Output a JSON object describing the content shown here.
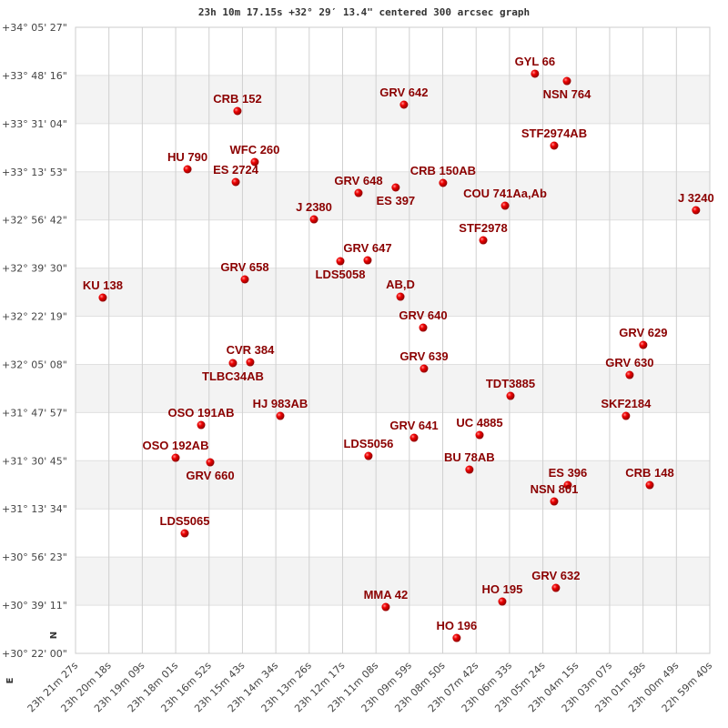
{
  "chart_data": {
    "type": "scatter",
    "title": "23h 10m 17.15s +32° 29′ 13.4\" centered 300 arcsec graph",
    "x_axis": {
      "unit": "hours (RA)",
      "reversed": true,
      "range": [
        23.3575,
        22.9944
      ],
      "tick_labels": [
        "23h 21m 27s",
        "23h 20m 18s",
        "23h 19m 09s",
        "23h 18m 01s",
        "23h 16m 52s",
        "23h 15m 43s",
        "23h 14m 34s",
        "23h 13m 26s",
        "23h 12m 17s",
        "23h 11m 08s",
        "23h 09m 59s",
        "23h 08m 50s",
        "23h 07m 42s",
        "23h 06m 33s",
        "23h 05m 24s",
        "23h 04m 15s",
        "23h 03m 07s",
        "23h 01m 58s",
        "23h 00m 49s",
        "22h 59m 40s"
      ]
    },
    "y_axis": {
      "unit": "degrees (Dec)",
      "range": [
        30.3667,
        34.0908
      ],
      "tick_labels": [
        "+34° 05' 27\"",
        "+33° 48' 16\"",
        "+33° 31' 04\"",
        "+33° 13' 53\"",
        "+32° 56' 42\"",
        "+32° 39' 30\"",
        "+32° 22' 19\"",
        "+32° 05' 08\"",
        "+31° 47' 57\"",
        "+31° 30' 45\"",
        "+31° 13' 34\"",
        "+30° 56' 23\"",
        "+30° 39' 11\"",
        "+30° 22' 00\""
      ]
    },
    "grid": true,
    "alternating_bands": true,
    "compass": {
      "north": "N",
      "east": "E"
    },
    "colors": {
      "point": "#e00000",
      "label": "#8b0000",
      "grid": "#d0d0d0",
      "band": "#f3f3f3"
    },
    "points": [
      {
        "name": "GYL  66",
        "ra": 23.0945,
        "dec": 33.8148
      },
      {
        "name": "NSN 764",
        "ra": 23.0762,
        "dec": 33.7714
      },
      {
        "name": "GRV 642",
        "ra": 23.1695,
        "dec": 33.6307
      },
      {
        "name": "CRB 152",
        "ra": 23.2648,
        "dec": 33.5928
      },
      {
        "name": "STF2974AB",
        "ra": 23.0835,
        "dec": 33.3871
      },
      {
        "name": "WFC 260",
        "ra": 23.2549,
        "dec": 33.2897
      },
      {
        "name": "HU  790",
        "ra": 23.2934,
        "dec": 33.2464
      },
      {
        "name": "ES 2724",
        "ra": 23.2658,
        "dec": 33.1706
      },
      {
        "name": "CRB 150AB",
        "ra": 23.1471,
        "dec": 33.1652
      },
      {
        "name": "ES  397",
        "ra": 23.1742,
        "dec": 33.1381
      },
      {
        "name": "GRV 648",
        "ra": 23.1955,
        "dec": 33.1056
      },
      {
        "name": "COU 741Aa,Ab",
        "ra": 23.1116,
        "dec": 33.0298
      },
      {
        "name": "J  3240",
        "ra": 23.0023,
        "dec": 33.0028
      },
      {
        "name": "J  2380",
        "ra": 23.221,
        "dec": 32.9486
      },
      {
        "name": "STF2978",
        "ra": 23.1241,
        "dec": 32.8241
      },
      {
        "name": "GRV 647",
        "ra": 23.1903,
        "dec": 32.705
      },
      {
        "name": "LDS5058",
        "ra": 23.2059,
        "dec": 32.6996
      },
      {
        "name": "GRV 658",
        "ra": 23.2606,
        "dec": 32.5914
      },
      {
        "name": "KU  138",
        "ra": 23.3419,
        "dec": 32.4831
      },
      {
        "name": "AB,D",
        "ra": 23.1715,
        "dec": 32.4885
      },
      {
        "name": "GRV 640",
        "ra": 23.1585,
        "dec": 32.3045
      },
      {
        "name": "GRV 629",
        "ra": 23.0325,
        "dec": 32.2016
      },
      {
        "name": "CVR 384",
        "ra": 23.2575,
        "dec": 32.0988
      },
      {
        "name": "TLBC34AB",
        "ra": 23.2674,
        "dec": 32.0934
      },
      {
        "name": "GRV 639",
        "ra": 23.158,
        "dec": 32.0609
      },
      {
        "name": "GRV 630",
        "ra": 23.0403,
        "dec": 32.023
      },
      {
        "name": "TDT3885",
        "ra": 23.1085,
        "dec": 31.8985
      },
      {
        "name": "SKF2184",
        "ra": 23.0424,
        "dec": 31.7794
      },
      {
        "name": "HJ  983AB",
        "ra": 23.2403,
        "dec": 31.7794
      },
      {
        "name": "OSO 191AB",
        "ra": 23.2856,
        "dec": 31.7253
      },
      {
        "name": "UC 4885",
        "ra": 23.1262,
        "dec": 31.6657
      },
      {
        "name": "GRV 641",
        "ra": 23.1637,
        "dec": 31.6495
      },
      {
        "name": "LDS5056",
        "ra": 23.1898,
        "dec": 31.5412
      },
      {
        "name": "OSO 192AB",
        "ra": 23.3002,
        "dec": 31.5304
      },
      {
        "name": "GRV 660",
        "ra": 23.2804,
        "dec": 31.5033
      },
      {
        "name": "BU   78AB",
        "ra": 23.132,
        "dec": 31.46
      },
      {
        "name": "ES  396",
        "ra": 23.0757,
        "dec": 31.368
      },
      {
        "name": "CRB 148",
        "ra": 23.0288,
        "dec": 31.368
      },
      {
        "name": "NSN 801",
        "ra": 23.0835,
        "dec": 31.2706
      },
      {
        "name": "LDS5065",
        "ra": 23.295,
        "dec": 31.0811
      },
      {
        "name": "GRV 632",
        "ra": 23.0825,
        "dec": 30.7563
      },
      {
        "name": "HO  195",
        "ra": 23.1132,
        "dec": 30.6751
      },
      {
        "name": "MMA  42",
        "ra": 23.1799,
        "dec": 30.6427
      },
      {
        "name": "HO  196",
        "ra": 23.1393,
        "dec": 30.4586
      }
    ]
  }
}
